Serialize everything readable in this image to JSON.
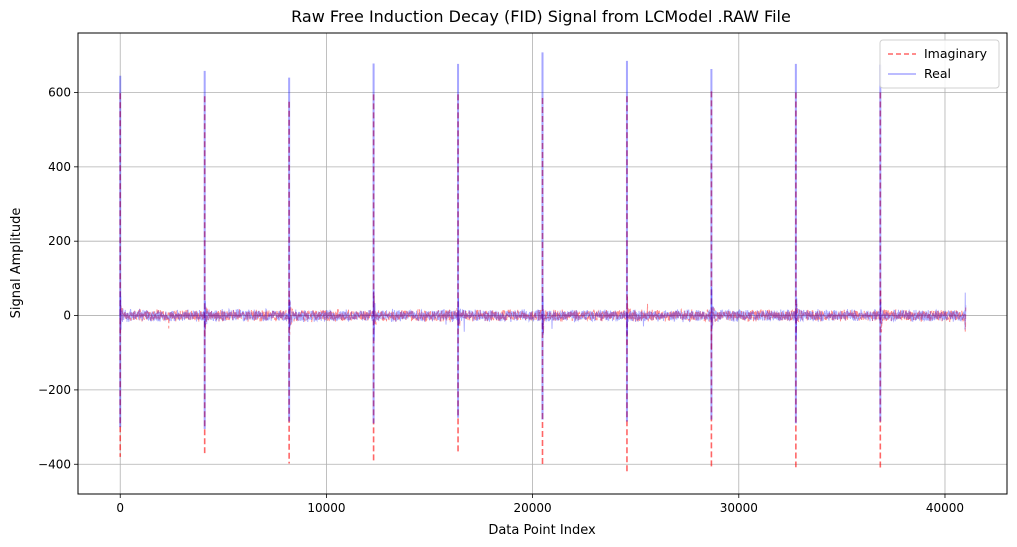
{
  "chart_data": {
    "type": "line",
    "title": "Raw Free Induction Decay (FID) Signal from LCModel .RAW File",
    "xlabel": "Data Point Index",
    "ylabel": "Signal Amplitude",
    "xlim": [
      -2048,
      43008
    ],
    "ylim": [
      -480,
      760
    ],
    "xticks": [
      0,
      10000,
      20000,
      30000,
      40000
    ],
    "xtick_labels": [
      "0",
      "10000",
      "20000",
      "30000",
      "40000"
    ],
    "yticks": [
      -400,
      -200,
      0,
      200,
      400,
      600
    ],
    "ytick_labels": [
      "−400",
      "−200",
      "0",
      "200",
      "400",
      "600"
    ],
    "grid": true,
    "legend_position": "top-right",
    "num_points": 40960,
    "segment_length": 4096,
    "series": [
      {
        "name": "Imaginary",
        "color": "#ff0000",
        "style": "dashed",
        "alpha": 0.6,
        "peak_index": [
          0,
          4096,
          8192,
          12288,
          16384,
          20480,
          24576,
          28672,
          32768,
          36864
        ],
        "peak_max": [
          598,
          590,
          575,
          595,
          595,
          585,
          590,
          603,
          600,
          600
        ],
        "peak_min": [
          -380,
          -370,
          -398,
          -390,
          -370,
          -400,
          -425,
          -412,
          -408,
          -412
        ],
        "baseline_noise_amplitude": 18
      },
      {
        "name": "Real",
        "color": "#0000ff",
        "style": "solid",
        "alpha": 0.3,
        "peak_index": [
          0,
          4096,
          8192,
          12288,
          16384,
          20480,
          24576,
          28672,
          32768,
          36864
        ],
        "peak_max": [
          645,
          658,
          640,
          678,
          677,
          708,
          685,
          663,
          677,
          675
        ],
        "peak_min": [
          -300,
          -305,
          -285,
          -290,
          -275,
          -280,
          -285,
          -280,
          -290,
          -285
        ],
        "baseline_noise_amplitude": 18
      }
    ]
  }
}
